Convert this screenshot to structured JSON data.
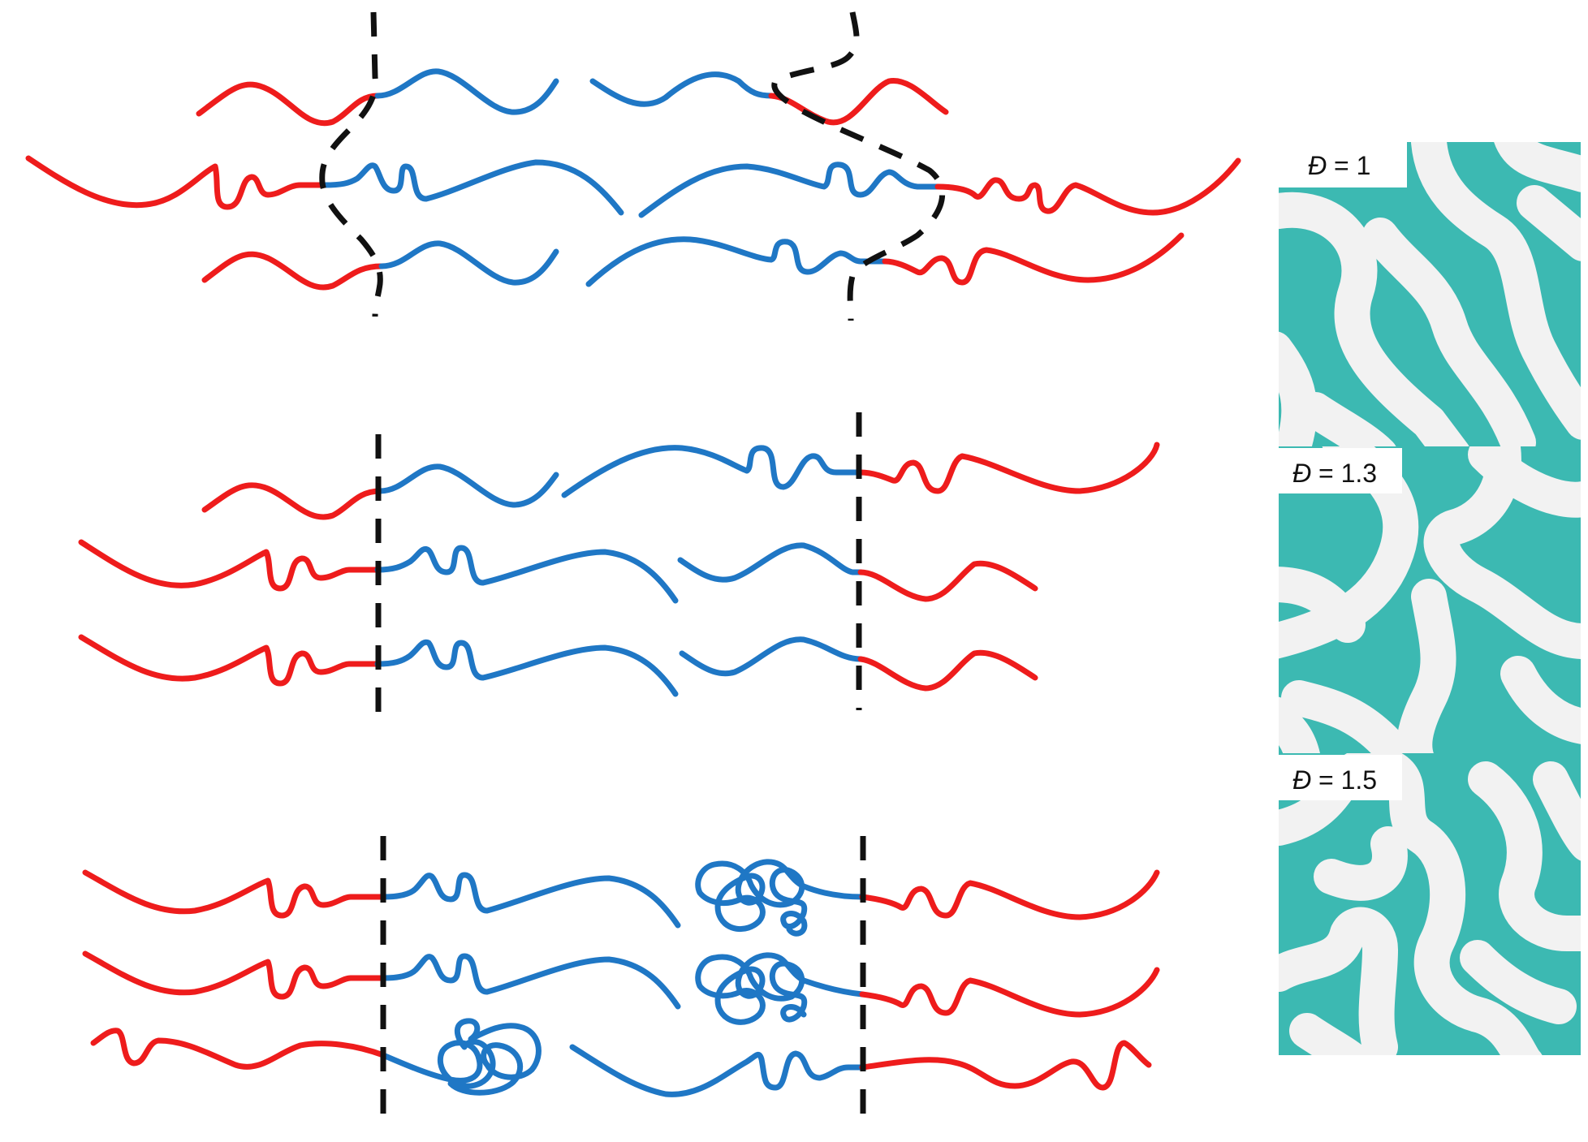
{
  "colors": {
    "block_a": "#ee1c1c",
    "block_b": "#1f77c5",
    "interface": "#111111",
    "morphology_matrix": "#3cb9b2",
    "morphology_domain": "#f2f2f2"
  },
  "morphology_panels": [
    {
      "symbol": "Đ",
      "equals": " = ",
      "value": "1"
    },
    {
      "symbol": "Đ",
      "equals": " = ",
      "value": "1.3"
    },
    {
      "symbol": "Đ",
      "equals": " = ",
      "value": "1.5"
    }
  ]
}
